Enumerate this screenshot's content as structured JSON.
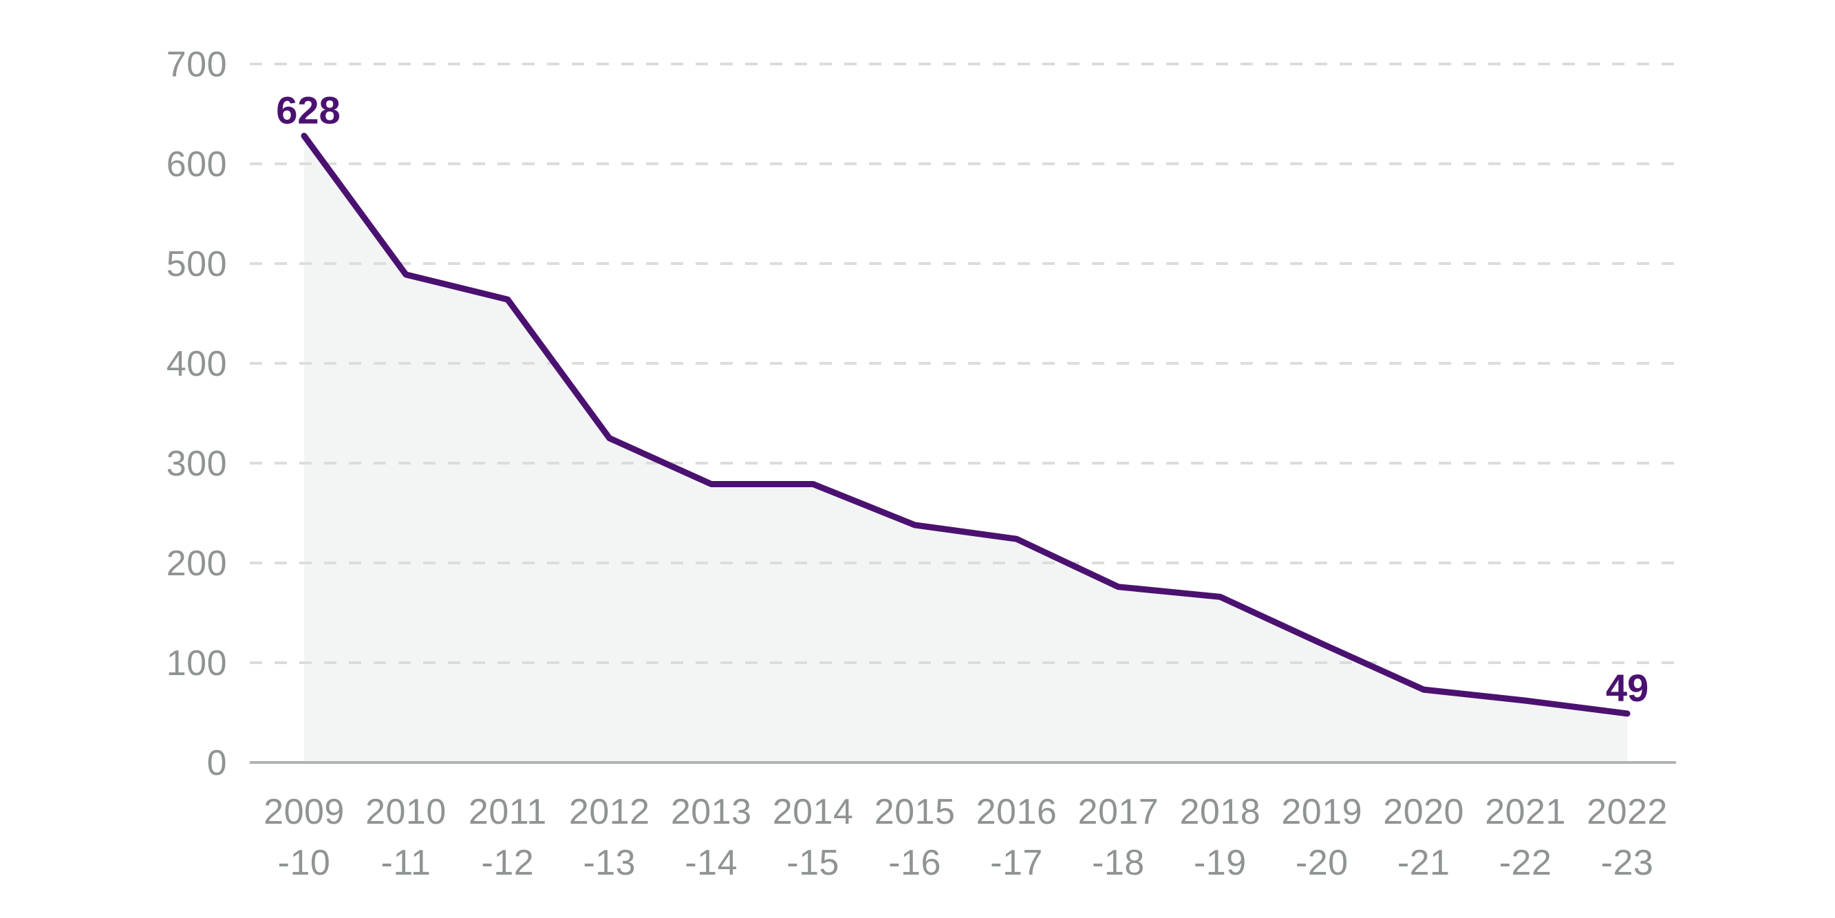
{
  "chart_data": {
    "type": "line",
    "categories": [
      [
        "2009",
        "-10"
      ],
      [
        "2010",
        "-11"
      ],
      [
        "2011",
        "-12"
      ],
      [
        "2012",
        "-13"
      ],
      [
        "2013",
        "-14"
      ],
      [
        "2014",
        "-15"
      ],
      [
        "2015",
        "-16"
      ],
      [
        "2016",
        "-17"
      ],
      [
        "2017",
        "-18"
      ],
      [
        "2018",
        "-19"
      ],
      [
        "2019",
        "-20"
      ],
      [
        "2020",
        "-21"
      ],
      [
        "2021",
        "-22"
      ],
      [
        "2022",
        "-23"
      ]
    ],
    "values": [
      628,
      489,
      464,
      325,
      279,
      279,
      238,
      224,
      176,
      166,
      119,
      73,
      62,
      49
    ],
    "point_labels": [
      {
        "index": 0,
        "label": "628"
      },
      {
        "index": 13,
        "label": "49"
      }
    ],
    "title": "",
    "xlabel": "",
    "ylabel": "",
    "yticks": [
      0,
      100,
      200,
      300,
      400,
      500,
      600,
      700
    ],
    "ylim": [
      0,
      700
    ],
    "grid": "horizontal-dashed",
    "legend": "none",
    "area_fill": true,
    "colors": {
      "line": "#4b1170",
      "point_label": "#4b1170",
      "area": "#f3f5f5",
      "gridline": "#dcdcdc",
      "axis_line": "#b0b3b4",
      "tick_text": "#8f9394",
      "background": "#ffffff"
    }
  }
}
